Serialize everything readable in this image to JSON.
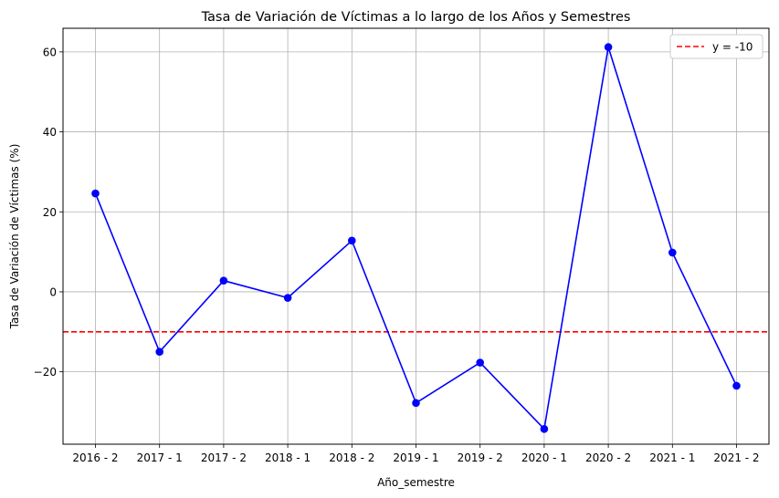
{
  "chart_data": {
    "type": "line",
    "title": "Tasa de Variación de Víctimas a lo largo de los Años y Semestres",
    "xlabel": "Año_semestre",
    "ylabel": "Tasa de Variación de Víctimas (%)",
    "categories": [
      "2016 - 2",
      "2017 - 1",
      "2017 - 2",
      "2018 - 1",
      "2018 - 2",
      "2019 - 1",
      "2019 - 2",
      "2020 - 1",
      "2020 - 2",
      "2021 - 1",
      "2021 - 2"
    ],
    "series": [
      {
        "values": [
          24.6,
          -15.0,
          2.8,
          -1.5,
          12.8,
          -27.8,
          -17.7,
          -34.3,
          61.2,
          9.8,
          -23.5
        ],
        "color": "#0000ff",
        "marker": "circle"
      }
    ],
    "reference_line": {
      "y": -10,
      "label": "y = -10",
      "color": "#ff0000",
      "style": "dashed"
    },
    "yticks": [
      -20,
      0,
      20,
      40,
      60
    ],
    "ylim": [
      -38.1,
      65.9
    ],
    "grid": true,
    "legend": {
      "position": "top-right",
      "entries": [
        "y = -10"
      ]
    }
  }
}
